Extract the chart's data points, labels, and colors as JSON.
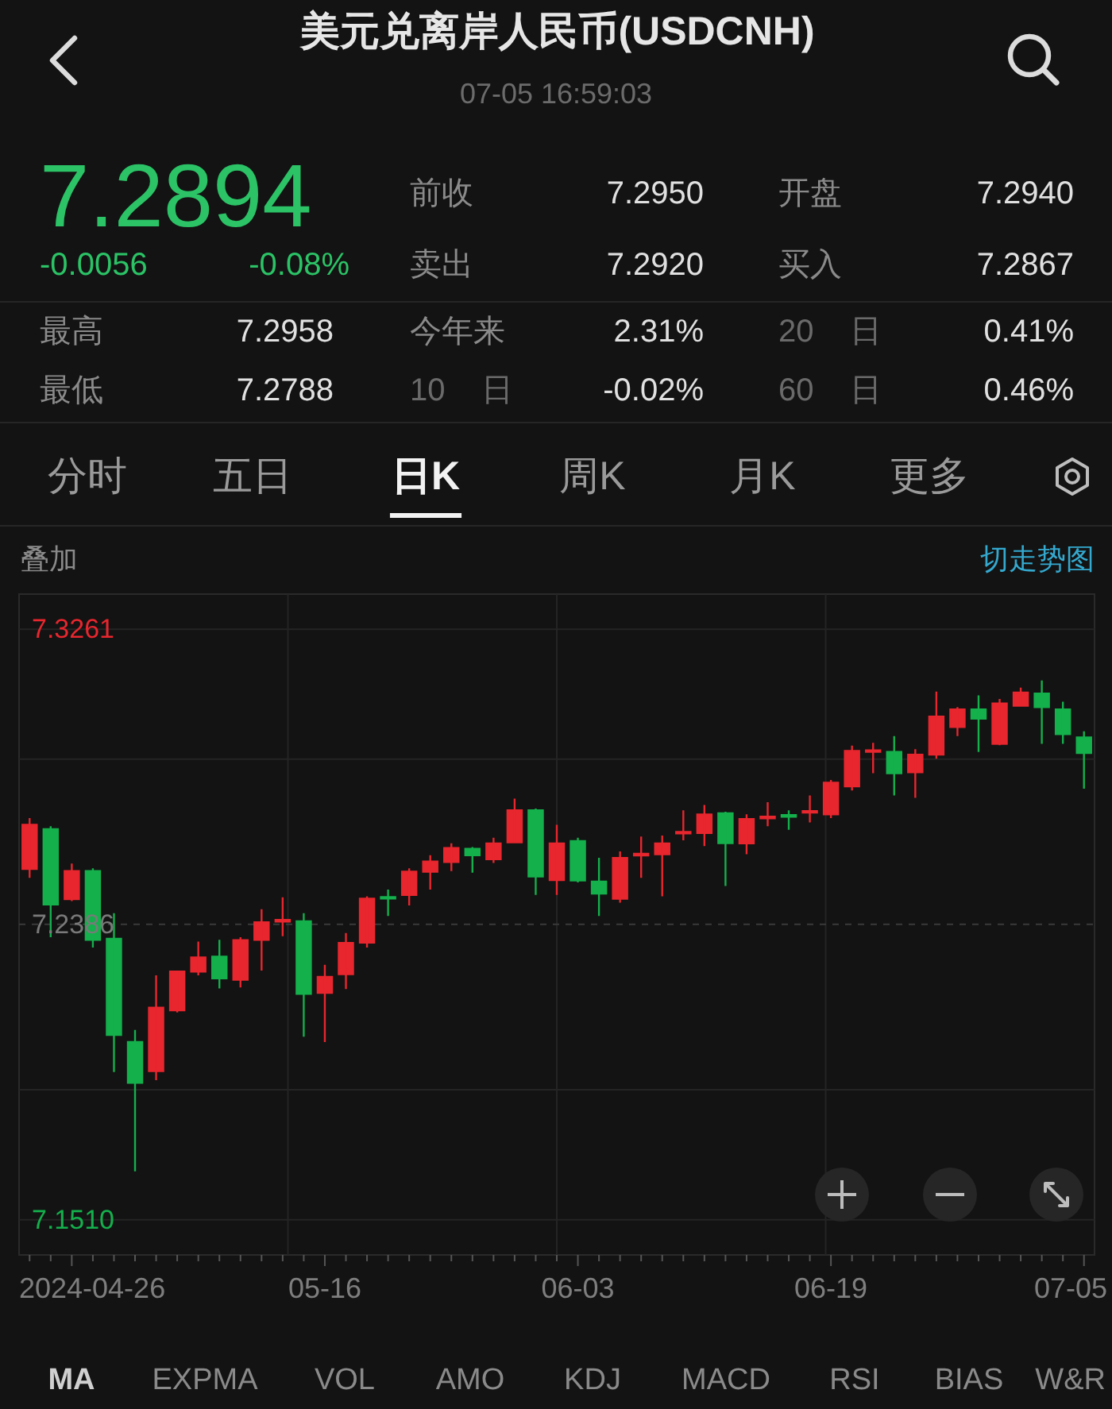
{
  "chart_data": [
    {
      "type": "other",
      "title": "美元兑离岸人民币(USDCNH)",
      "subtitle": "07-05 16:59:03",
      "annotations": [
        "7.2894",
        "-0.0056",
        "-0.08%",
        "前收",
        "7.2950",
        "开盘",
        "7.2940",
        "卖出",
        "7.2920",
        "买入",
        "7.2867",
        "最高",
        "7.2958",
        "今年来",
        "2.31%",
        "20 日",
        "0.41%",
        "最低",
        "7.2788",
        "10 日",
        "-0.02%",
        "60 日",
        "0.46%",
        "分时",
        "五日",
        "日K",
        "周K",
        "月K",
        "更多"
      ]
    },
    {
      "type": "candlestick",
      "annotations": [
        "叠加",
        "切走势图"
      ],
      "categories": [
        null,
        null,
        "2024-04-26",
        null,
        null,
        null,
        null,
        null,
        null,
        null,
        null,
        null,
        null,
        null,
        "05-16",
        null,
        null,
        null,
        null,
        null,
        null,
        null,
        null,
        null,
        null,
        null,
        "06-03",
        null,
        null,
        null,
        null,
        null,
        null,
        null,
        null,
        null,
        null,
        null,
        "06-19",
        null,
        null,
        null,
        null,
        null,
        null,
        null,
        null,
        null,
        null,
        null,
        "07-05"
      ],
      "ohlc": [
        [
          7.255,
          7.2701,
          7.2524,
          7.2681
        ],
        [
          7.2668,
          7.2677,
          7.2348,
          7.2445
        ],
        [
          7.2461,
          7.2566,
          7.2455,
          7.2544
        ],
        [
          7.2544,
          7.2552,
          7.2317,
          7.234
        ],
        [
          7.2343,
          7.2419,
          7.1948,
          7.2058
        ],
        [
          7.2037,
          7.2073,
          7.1654,
          7.1916
        ],
        [
          7.1951,
          7.2235,
          7.1924,
          7.2139
        ],
        [
          7.2131,
          7.2249,
          7.2125,
          7.2246
        ],
        [
          7.2246,
          7.2335,
          7.2235,
          7.2288
        ],
        [
          7.229,
          7.234,
          7.2196,
          7.2226
        ],
        [
          7.2222,
          7.2348,
          7.2199,
          7.2339
        ],
        [
          7.234,
          7.2431,
          7.2249,
          7.2392
        ],
        [
          7.2397,
          7.2466,
          7.2351,
          7.2399
        ],
        [
          7.2395,
          7.2419,
          7.2053,
          7.218
        ],
        [
          7.2183,
          7.2266,
          7.2037,
          7.223
        ],
        [
          7.2238,
          7.236,
          7.2194,
          7.2331
        ],
        [
          7.2332,
          7.2469,
          7.2317,
          7.2462
        ],
        [
          7.2467,
          7.2489,
          7.2411,
          7.2464
        ],
        [
          7.2473,
          7.2552,
          7.2442,
          7.2542
        ],
        [
          7.2542,
          7.2591,
          7.2489,
          7.2572
        ],
        [
          7.2571,
          7.2626,
          7.2544,
          7.2612
        ],
        [
          7.261,
          7.2615,
          7.2539,
          7.2591
        ],
        [
          7.2579,
          7.2643,
          7.2568,
          7.2626
        ],
        [
          7.2629,
          7.2759,
          7.2627,
          7.2724
        ],
        [
          7.2724,
          7.2729,
          7.2473,
          7.2528
        ],
        [
          7.2517,
          7.2681,
          7.2473,
          7.2626
        ],
        [
          7.2633,
          7.2643,
          7.251,
          7.2516
        ],
        [
          7.2513,
          7.2583,
          7.2411,
          7.2477
        ],
        [
          7.2462,
          7.2602,
          7.245,
          7.2583
        ],
        [
          7.2593,
          7.2646,
          7.2524,
          7.2595
        ],
        [
          7.2594,
          7.2649,
          7.2469,
          7.2626
        ],
        [
          7.2657,
          7.2724,
          7.2635,
          7.266
        ],
        [
          7.2657,
          7.274,
          7.2618,
          7.2712
        ],
        [
          7.2715,
          7.272,
          7.25,
          7.2627
        ],
        [
          7.2626,
          7.2712,
          7.2594,
          7.2698
        ],
        [
          7.2703,
          7.2748,
          7.2677,
          7.2705
        ],
        [
          7.271,
          7.2724,
          7.2666,
          7.2707
        ],
        [
          7.2718,
          7.2768,
          7.2688,
          7.2722
        ],
        [
          7.2712,
          7.2814,
          7.2701,
          7.2806
        ],
        [
          7.2795,
          7.2916,
          7.2783,
          7.29
        ],
        [
          7.29,
          7.2924,
          7.2834,
          7.2902
        ],
        [
          7.2897,
          7.2944,
          7.2768,
          7.2834
        ],
        [
          7.2837,
          7.2905,
          7.2761,
          7.2889
        ],
        [
          7.2889,
          7.3076,
          7.2877,
          7.3002
        ],
        [
          7.2971,
          7.303,
          7.2944,
          7.3023
        ],
        [
          7.3023,
          7.3065,
          7.2897,
          7.2996
        ],
        [
          7.2921,
          7.3054,
          7.2917,
          7.3041
        ],
        [
          7.3034,
          7.3088,
          7.3034,
          7.3073
        ],
        [
          7.307,
          7.3109,
          7.2921,
          7.303
        ],
        [
          7.3023,
          7.3046,
          7.2921,
          7.295
        ],
        [
          7.294,
          7.2958,
          7.2788,
          7.2894
        ]
      ],
      "colors": [
        "#e8262e",
        "#14b04c",
        "#e8262e",
        "#14b04c",
        "#14b04c",
        "#14b04c",
        "#e8262e",
        "#e8262e",
        "#e8262e",
        "#14b04c",
        "#e8262e",
        "#e8262e",
        "#e8262e",
        "#14b04c",
        "#e8262e",
        "#e8262e",
        "#e8262e",
        "#14b04c",
        "#e8262e",
        "#e8262e",
        "#e8262e",
        "#14b04c",
        "#e8262e",
        "#e8262e",
        "#14b04c",
        "#e8262e",
        "#14b04c",
        "#14b04c",
        "#e8262e",
        "#e8262e",
        "#e8262e",
        "#e8262e",
        "#e8262e",
        "#14b04c",
        "#e8262e",
        "#e8262e",
        "#14b04c",
        "#e8262e",
        "#e8262e",
        "#e8262e",
        "#e8262e",
        "#14b04c",
        "#e8262e",
        "#e8262e",
        "#e8262e",
        "#14b04c",
        "#e8262e",
        "#e8262e",
        "#14b04c",
        "#14b04c",
        "#14b04c"
      ],
      "ylim": [
        7.1406,
        7.3365
      ],
      "yticks": [
        {
          "value": 7.151,
          "label": "7.1510"
        },
        {
          "value": 7.1896,
          "label": null
        },
        7.2386,
        {
          "value": 7.2876,
          "label": null
        },
        7.3261
      ],
      "grid": true,
      "ref_lines": [
        {
          "axis": "y",
          "value": 7.2386,
          "line_style": "dashed"
        }
      ]
    },
    {
      "type": "other",
      "annotations": [
        "MA",
        "EXPMA",
        "VOL",
        "AMO",
        "KDJ",
        "MACD",
        "RSI",
        "BIAS",
        "W&R"
      ]
    }
  ]
}
